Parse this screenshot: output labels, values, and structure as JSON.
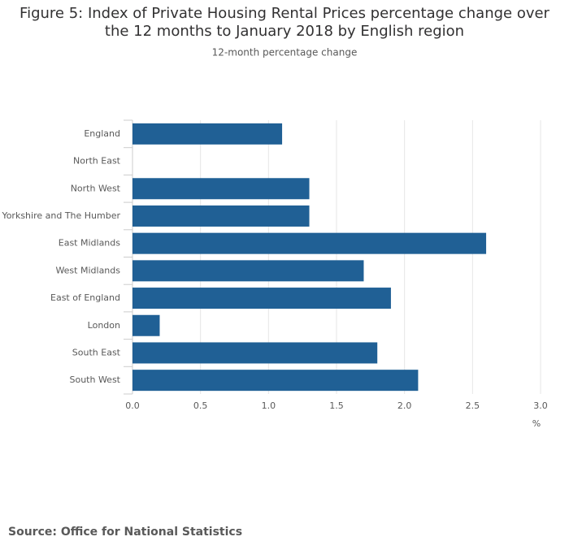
{
  "chart_data": {
    "type": "bar",
    "orientation": "horizontal",
    "title": "Figure 5: Index of Private Housing Rental Prices percentage change over the 12 months to January 2018 by English region",
    "subtitle": "12-month percentage change",
    "x_label": "%",
    "source": "Source: Office for National Statistics",
    "categories": [
      "England",
      "North East",
      "North West",
      "Yorkshire and The Humber",
      "East Midlands",
      "West Midlands",
      "East of England",
      "London",
      "South East",
      "South West"
    ],
    "values": [
      1.1,
      0.0,
      1.3,
      1.3,
      2.6,
      1.7,
      1.9,
      0.2,
      1.8,
      2.1
    ],
    "color": "#206095",
    "xlim": [
      0,
      3
    ],
    "xticks": [
      {
        "value": 0,
        "label": "0.0"
      },
      {
        "value": 0.5,
        "label": "0.5"
      },
      {
        "value": 1,
        "label": "1.0"
      },
      {
        "value": 1.5,
        "label": "1.5"
      },
      {
        "value": 2,
        "label": "2.0"
      },
      {
        "value": 2.5,
        "label": "2.5"
      },
      {
        "value": 3,
        "label": "3.0"
      }
    ],
    "grid": true
  }
}
